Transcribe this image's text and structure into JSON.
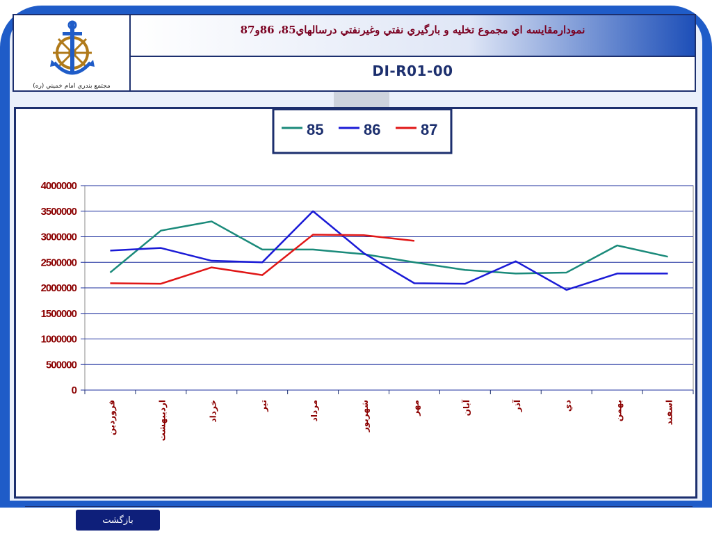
{
  "header": {
    "title": "نمودارمقايسه اي مجموع تخليه و بارگيري نفتي وغيرنفتي درسالهاي85، 86و87",
    "code": "DI-R01-00",
    "logo_caption": "مجتمع بندري امام خميني (ره)",
    "logo_icon": "anchor-ship-wheel-icon"
  },
  "footer": {
    "back_label": "بازگشت"
  },
  "colors": {
    "frame": "#1c2f6e",
    "accent_blue": "#1f5cc8",
    "title_text": "#7a0020",
    "axis_text": "#8b0000",
    "gridline": "#1c2f9e"
  },
  "chart_data": {
    "type": "line",
    "categories": [
      "فروردين",
      "ارديبهشت",
      "خرداد",
      "تير",
      "مرداد",
      "شهريور",
      "مهر",
      "آبان",
      "آذر",
      "دي",
      "بهمن",
      "اسفند"
    ],
    "ylim": [
      0,
      4000000
    ],
    "yticks": [
      0,
      500000,
      1000000,
      1500000,
      2000000,
      2500000,
      3000000,
      3500000,
      4000000
    ],
    "ytick_labels": [
      "0",
      "500000",
      "1000000",
      "1500000",
      "2000000",
      "2500000",
      "3000000",
      "3500000",
      "4000000"
    ],
    "grid": true,
    "legend_position": "top",
    "series": [
      {
        "name": "85",
        "color": "#1a8a7a",
        "values": [
          2300000,
          3120000,
          3300000,
          2750000,
          2750000,
          2660000,
          2500000,
          2350000,
          2280000,
          2300000,
          2830000,
          2610000
        ]
      },
      {
        "name": "86",
        "color": "#1a1ad6",
        "values": [
          2730000,
          2780000,
          2530000,
          2500000,
          3500000,
          2680000,
          2090000,
          2080000,
          2520000,
          1960000,
          2280000,
          2280000
        ]
      },
      {
        "name": "87",
        "color": "#e01616",
        "values": [
          2090000,
          2080000,
          2400000,
          2250000,
          3040000,
          3030000,
          2920000,
          null,
          null,
          null,
          null,
          null
        ]
      }
    ]
  }
}
